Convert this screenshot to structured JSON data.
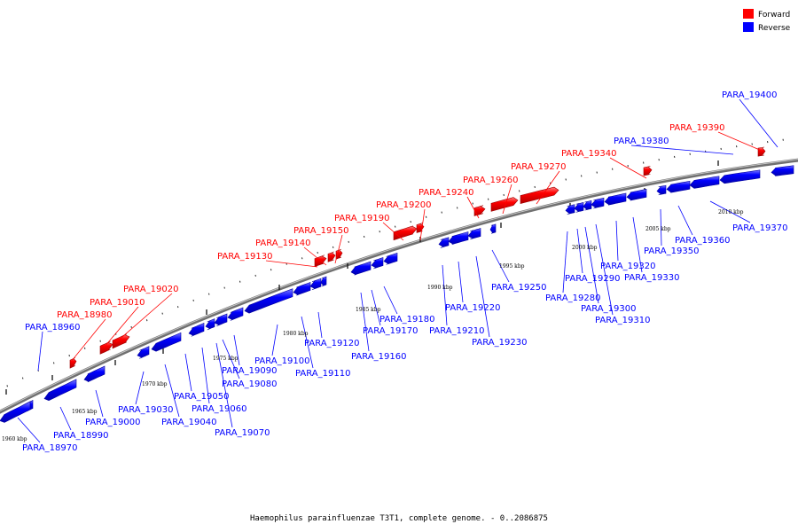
{
  "caption": "Haemophilus parainfluenzae T3T1, complete genome. - 0..2086875",
  "legend": [
    {
      "label": "Forward",
      "color": "#ff0000"
    },
    {
      "label": "Reverse",
      "color": "#0000ff"
    }
  ],
  "colors": {
    "forward": "#ff0000",
    "reverse": "#0000ff",
    "backbone": "#808080"
  },
  "ticks": [
    "1960 kbp",
    "1965 kbp",
    "1970 kbp",
    "1975 kbp",
    "1980 kbp",
    "1985 kbp",
    "1990 kbp",
    "1995 kbp",
    "2000 kbp",
    "2005 kbp",
    "2010 kbp"
  ],
  "genes": [
    {
      "name": "PARA_18960",
      "strand": "reverse"
    },
    {
      "name": "PARA_18970",
      "strand": "reverse"
    },
    {
      "name": "PARA_18980",
      "strand": "forward"
    },
    {
      "name": "PARA_18990",
      "strand": "reverse"
    },
    {
      "name": "PARA_19000",
      "strand": "reverse"
    },
    {
      "name": "PARA_19010",
      "strand": "forward"
    },
    {
      "name": "PARA_19020",
      "strand": "forward"
    },
    {
      "name": "PARA_19030",
      "strand": "reverse"
    },
    {
      "name": "PARA_19040",
      "strand": "reverse"
    },
    {
      "name": "PARA_19050",
      "strand": "reverse"
    },
    {
      "name": "PARA_19060",
      "strand": "reverse"
    },
    {
      "name": "PARA_19070",
      "strand": "reverse"
    },
    {
      "name": "PARA_19080",
      "strand": "reverse"
    },
    {
      "name": "PARA_19090",
      "strand": "reverse"
    },
    {
      "name": "PARA_19100",
      "strand": "reverse"
    },
    {
      "name": "PARA_19110",
      "strand": "reverse"
    },
    {
      "name": "PARA_19120",
      "strand": "reverse"
    },
    {
      "name": "PARA_19130",
      "strand": "forward"
    },
    {
      "name": "PARA_19140",
      "strand": "forward"
    },
    {
      "name": "PARA_19150",
      "strand": "forward"
    },
    {
      "name": "PARA_19160",
      "strand": "reverse"
    },
    {
      "name": "PARA_19170",
      "strand": "reverse"
    },
    {
      "name": "PARA_19180",
      "strand": "reverse"
    },
    {
      "name": "PARA_19190",
      "strand": "forward"
    },
    {
      "name": "PARA_19200",
      "strand": "forward"
    },
    {
      "name": "PARA_19210",
      "strand": "reverse"
    },
    {
      "name": "PARA_19220",
      "strand": "reverse"
    },
    {
      "name": "PARA_19230",
      "strand": "reverse"
    },
    {
      "name": "PARA_19240",
      "strand": "forward"
    },
    {
      "name": "PARA_19250",
      "strand": "reverse"
    },
    {
      "name": "PARA_19260",
      "strand": "forward"
    },
    {
      "name": "PARA_19270",
      "strand": "forward"
    },
    {
      "name": "PARA_19280",
      "strand": "reverse"
    },
    {
      "name": "PARA_19290",
      "strand": "reverse"
    },
    {
      "name": "PARA_19300",
      "strand": "reverse"
    },
    {
      "name": "PARA_19310",
      "strand": "reverse"
    },
    {
      "name": "PARA_19320",
      "strand": "reverse"
    },
    {
      "name": "PARA_19330",
      "strand": "reverse"
    },
    {
      "name": "PARA_19340",
      "strand": "forward"
    },
    {
      "name": "PARA_19350",
      "strand": "reverse"
    },
    {
      "name": "PARA_19360",
      "strand": "reverse"
    },
    {
      "name": "PARA_19370",
      "strand": "reverse"
    },
    {
      "name": "PARA_19380",
      "strand": "reverse"
    },
    {
      "name": "PARA_19390",
      "strand": "forward"
    },
    {
      "name": "PARA_19400",
      "strand": "reverse"
    }
  ]
}
